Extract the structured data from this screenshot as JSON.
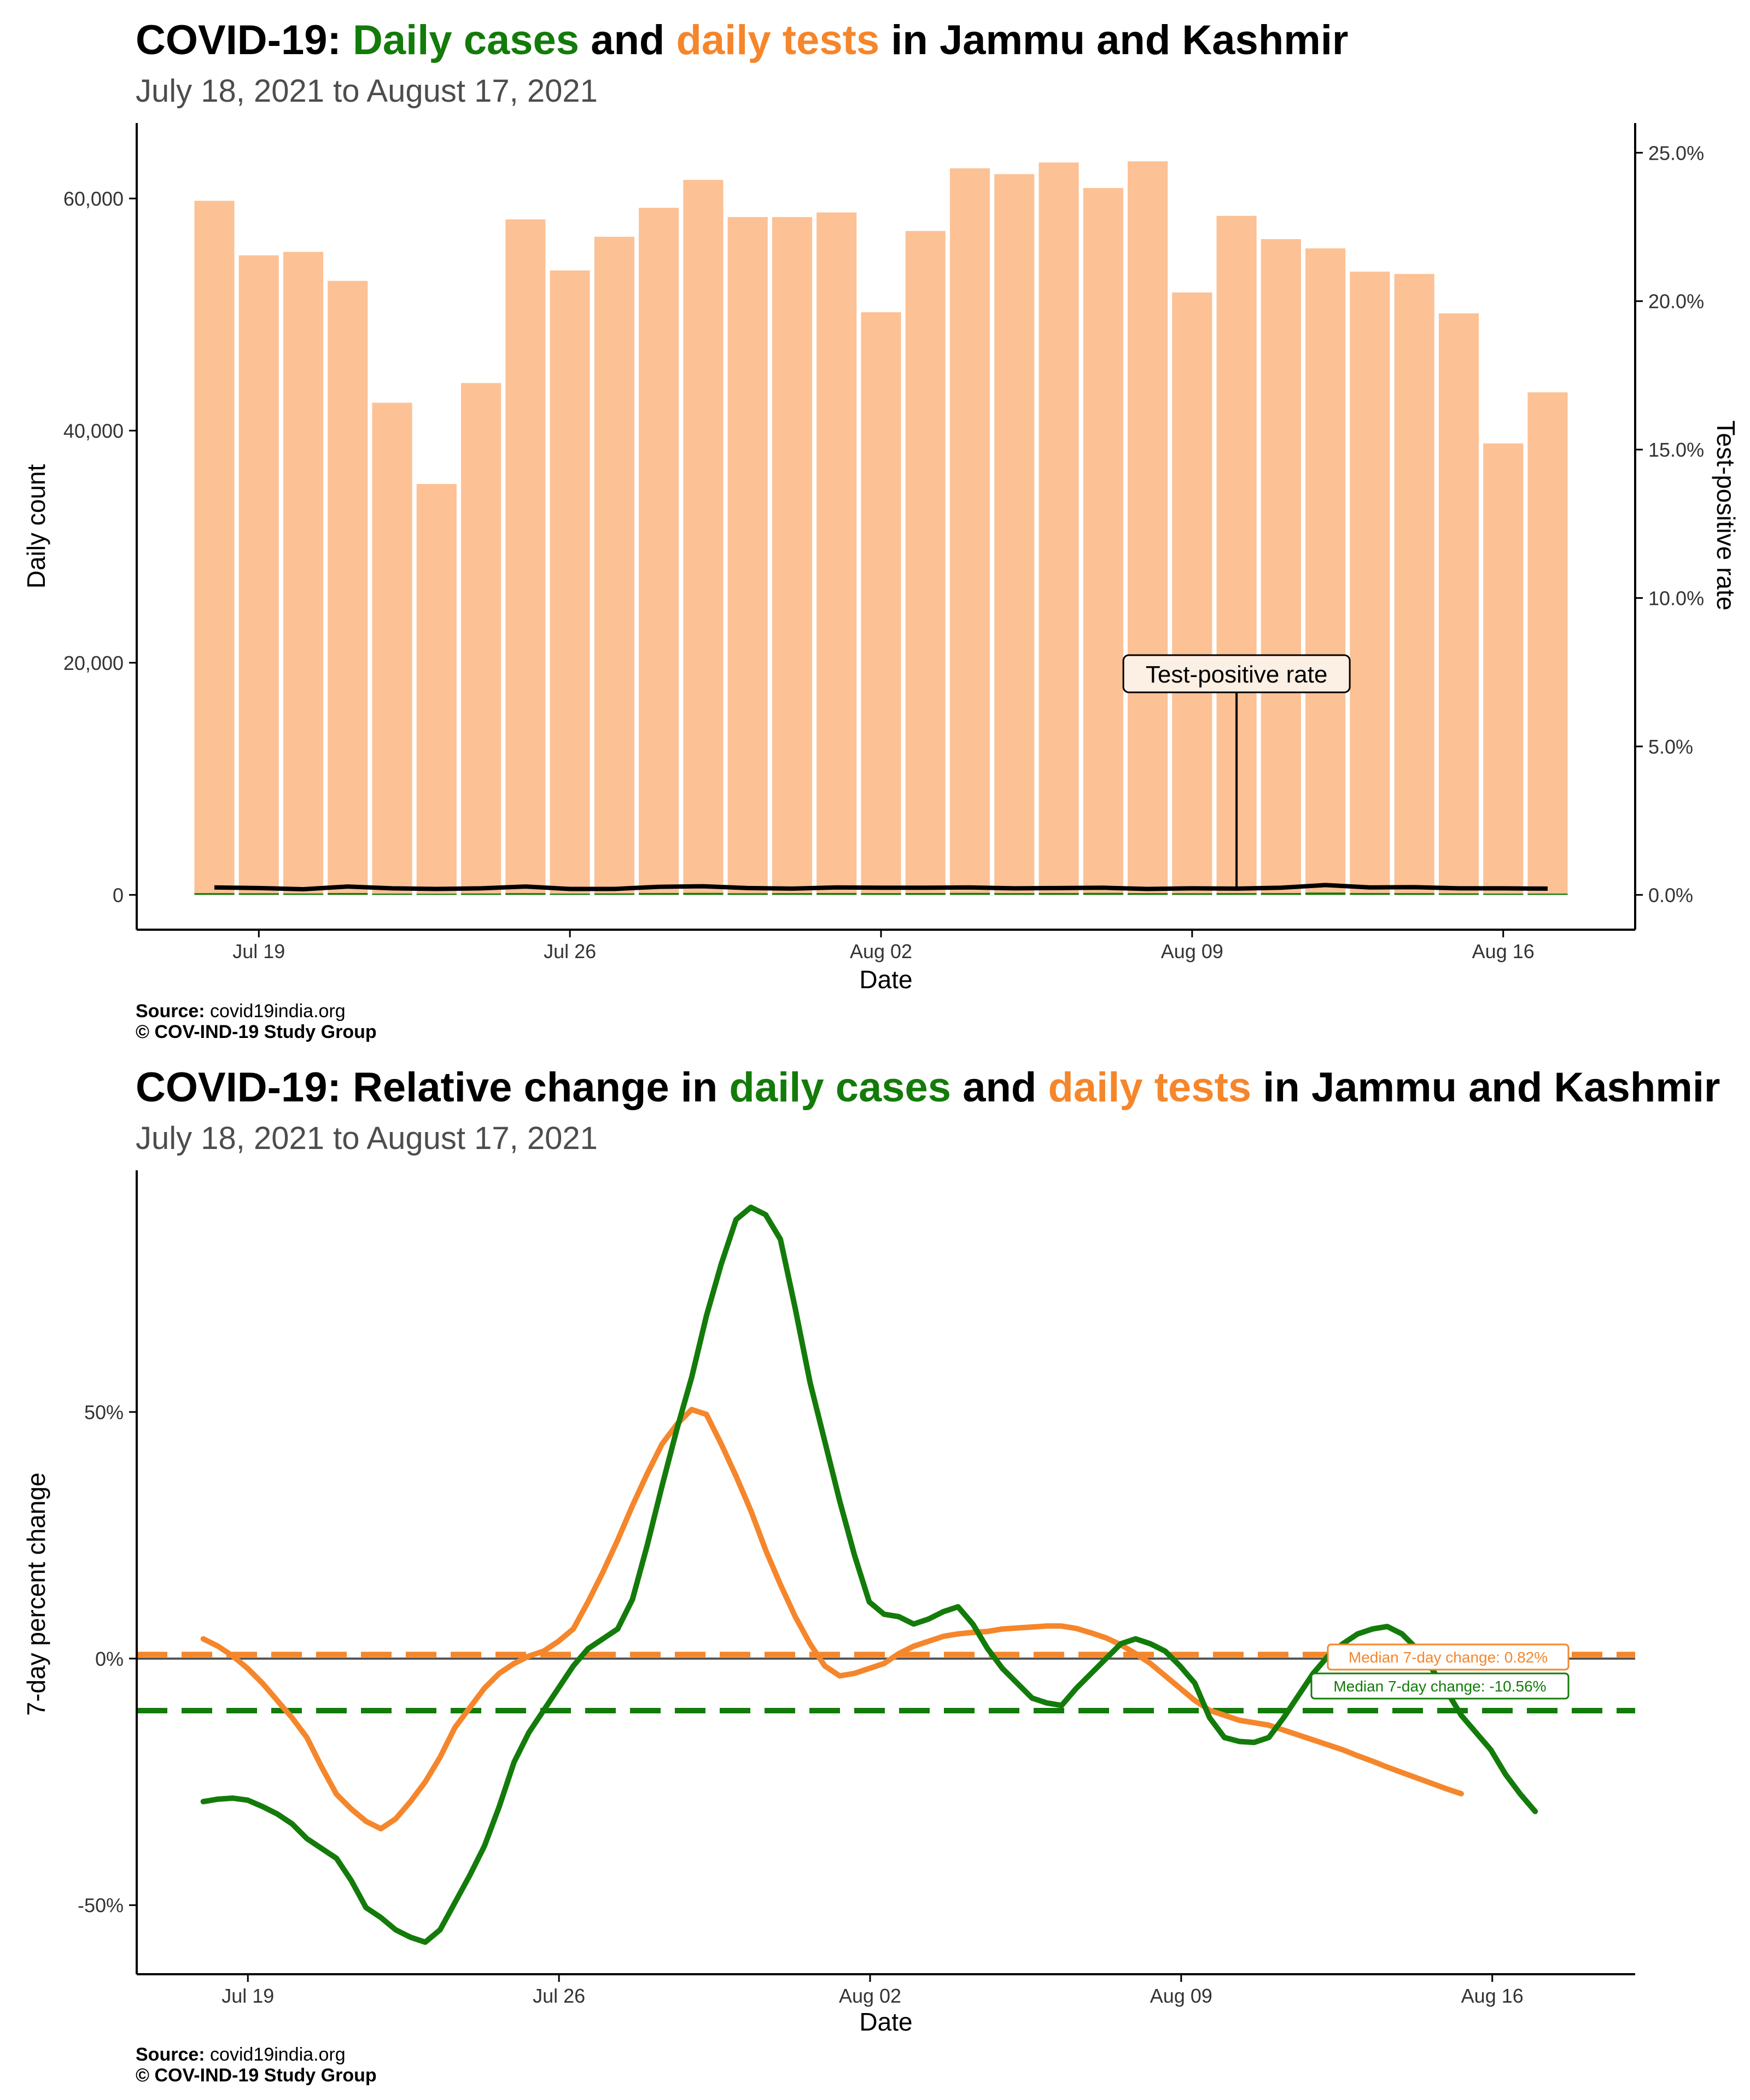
{
  "chart_data": [
    {
      "type": "bar",
      "title": {
        "prefix": "COVID-19: ",
        "highlight1": "Daily cases",
        "middle": " and ",
        "highlight2": "daily tests",
        "suffix": " in Jammu and Kashmir"
      },
      "subtitle": "July 18, 2021 to August 17, 2021",
      "xlabel": "Date",
      "ylabel": "Daily count",
      "y2label": "Test-positive rate",
      "x_tick_labels": [
        "Jul 19",
        "Jul 26",
        "Aug 02",
        "Aug 09",
        "Aug 16"
      ],
      "x_tick_index": [
        1,
        8,
        15,
        22,
        29
      ],
      "y_ticks": [
        0,
        20000,
        40000,
        60000
      ],
      "y_tick_labels": [
        "0",
        "20,000",
        "40,000",
        "60,000"
      ],
      "ylim": [
        -3000,
        66500
      ],
      "y2_ticks": [
        0,
        5,
        10,
        15,
        20,
        25
      ],
      "y2_tick_labels": [
        "0.0%",
        "5.0%",
        "10.0%",
        "15.0%",
        "20.0%",
        "25.0%"
      ],
      "y2_scale_max": 26,
      "dates": [
        "Jul 18",
        "Jul 19",
        "Jul 20",
        "Jul 21",
        "Jul 22",
        "Jul 23",
        "Jul 24",
        "Jul 25",
        "Jul 26",
        "Jul 27",
        "Jul 28",
        "Jul 29",
        "Jul 30",
        "Jul 31",
        "Aug 01",
        "Aug 02",
        "Aug 03",
        "Aug 04",
        "Aug 05",
        "Aug 06",
        "Aug 07",
        "Aug 08",
        "Aug 09",
        "Aug 10",
        "Aug 11",
        "Aug 12",
        "Aug 13",
        "Aug 14",
        "Aug 15",
        "Aug 16",
        "Aug 17"
      ],
      "series": [
        {
          "kind": "tests",
          "color": "#fcc195",
          "values": [
            59800,
            55100,
            55400,
            52900,
            42400,
            35400,
            44100,
            58200,
            53800,
            56700,
            59200,
            61600,
            58400,
            58400,
            58800,
            50200,
            57200,
            62600,
            62100,
            63100,
            60900,
            63200,
            51900,
            58500,
            56500,
            55700,
            53700,
            53500,
            50100,
            38900,
            43300
          ]
        },
        {
          "kind": "cases",
          "color": "#137b0a",
          "values": [
            150,
            140,
            120,
            160,
            110,
            100,
            120,
            150,
            110,
            130,
            160,
            170,
            140,
            150,
            160,
            150,
            160,
            170,
            150,
            160,
            170,
            150,
            140,
            150,
            160,
            200,
            160,
            150,
            130,
            110,
            110
          ]
        },
        {
          "kind": "test-positive rate (%)",
          "color": "#000000",
          "values": [
            0.25,
            0.23,
            0.19,
            0.28,
            0.22,
            0.2,
            0.22,
            0.28,
            0.2,
            0.2,
            0.27,
            0.29,
            0.23,
            0.21,
            0.25,
            0.24,
            0.24,
            0.25,
            0.22,
            0.23,
            0.24,
            0.2,
            0.22,
            0.21,
            0.24,
            0.33,
            0.25,
            0.26,
            0.22,
            0.22,
            0.21
          ]
        }
      ],
      "annotation": {
        "text": "Test-positive rate",
        "date": "Aug 10"
      }
    },
    {
      "type": "line",
      "title": {
        "prefix": "COVID-19: Relative change in ",
        "highlight1": "daily cases",
        "middle": " and ",
        "highlight2": "daily tests",
        "suffix": " in Jammu and Kashmir"
      },
      "subtitle": "July 18, 2021 to August 17, 2021",
      "xlabel": "Date",
      "ylabel": "7-day percent change",
      "x_tick_labels": [
        "Jul 19",
        "Jul 26",
        "Aug 02",
        "Aug 09",
        "Aug 16"
      ],
      "x_tick_index": [
        1,
        8,
        15,
        22,
        29
      ],
      "y_ticks": [
        -50,
        0,
        50
      ],
      "y_tick_labels": [
        "-50%",
        "0%",
        "50%"
      ],
      "ylim": [
        -64,
        99
      ],
      "x_start": -0.25,
      "x_step": 0.333,
      "series": [
        {
          "kind": "daily tests",
          "color": "#f5862b",
          "values": [
            4,
            2.5,
            0.5,
            -2,
            -5,
            -8.5,
            -12,
            -16,
            -22,
            -27.5,
            -30.5,
            -33,
            -34.5,
            -32.5,
            -29,
            -25,
            -20,
            -14,
            -10,
            -6,
            -3,
            -1,
            0.5,
            1.5,
            3.5,
            6,
            11.5,
            17.5,
            24,
            31,
            37.5,
            43.5,
            47.5,
            50.5,
            49.5,
            43.5,
            37,
            30,
            22,
            15,
            8.5,
            3,
            -1.5,
            -3.5,
            -3,
            -2,
            -1,
            1,
            2.5,
            3.5,
            4.5,
            5,
            5.3,
            5.5,
            6,
            6.2,
            6.4,
            6.6,
            6.6,
            6.1,
            5.2,
            4.2,
            2.8,
            1,
            -1,
            -3.5,
            -6,
            -8.5,
            -10.5,
            -11.5,
            -12.5,
            -13,
            -13.5,
            -14.5,
            -15.5,
            -16.5,
            -17.5,
            -18.5,
            -19.7,
            -20.8,
            -22,
            -23.1,
            -24.2,
            -25.3,
            -26.4,
            -27.4
          ]
        },
        {
          "kind": "daily cases",
          "color": "#137b0a",
          "values": [
            -29,
            -28.5,
            -28.3,
            -28.7,
            -30,
            -31.5,
            -33.5,
            -36.5,
            -38.5,
            -40.5,
            -45,
            -50.5,
            -52.5,
            -55,
            -56.5,
            -57.5,
            -55,
            -49.5,
            -44,
            -38,
            -30,
            -21,
            -15,
            -10.5,
            -6,
            -1.5,
            2,
            4,
            6,
            12,
            23,
            35,
            46.5,
            57,
            69.5,
            80,
            89,
            91.5,
            90,
            85,
            71,
            56,
            44,
            32,
            21,
            11.5,
            9,
            8.5,
            7,
            8,
            9.5,
            10.5,
            7,
            2,
            -2,
            -5,
            -8,
            -9,
            -9.5,
            -6,
            -3,
            0,
            3,
            4,
            3,
            1.5,
            -1.5,
            -5,
            -12,
            -16,
            -16.8,
            -17,
            -16,
            -12,
            -7.5,
            -3,
            0.5,
            3,
            5,
            6,
            6.5,
            5,
            2,
            -2,
            -6.5,
            -11.5,
            -15,
            -18.5,
            -23.5,
            -27.5,
            -31
          ]
        }
      ],
      "median_lines": [
        {
          "kind": "daily tests",
          "value": 0.82,
          "label": "Median 7-day change: 0.82%",
          "color": "#f5862b"
        },
        {
          "kind": "daily cases",
          "value": -10.56,
          "label": "Median 7-day change: -10.56%",
          "color": "#137b0a"
        }
      ]
    }
  ],
  "caption": {
    "source_label": "Source:",
    "source_value": " covid19india.org",
    "credit": "© COV-IND-19 Study Group"
  },
  "colors": {
    "green": "#137b0a",
    "orange": "#f5862b",
    "bar_fill": "#fcc195"
  }
}
